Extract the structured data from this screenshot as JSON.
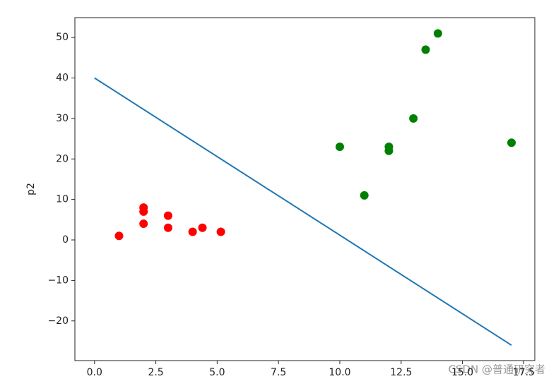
{
  "chart_data": {
    "type": "scatter",
    "ylabel": "p2",
    "xlim": [
      -0.8,
      17.95
    ],
    "ylim": [
      -29.8,
      54.9
    ],
    "xticks": [
      {
        "value": 0,
        "label": "0.0"
      },
      2.5,
      {
        "value": 5,
        "label": "5.0"
      },
      7.5,
      {
        "value": 10,
        "label": "10.0"
      },
      12.5,
      {
        "value": 15,
        "label": "15.0"
      },
      17.5
    ],
    "yticks": [
      {
        "value": -20,
        "label": "−20"
      },
      {
        "value": -10,
        "label": "−10"
      },
      0,
      10,
      20,
      30,
      40,
      50
    ],
    "series": [
      {
        "type": "scatter",
        "color": "#ff0000",
        "x": [
          1,
          2,
          2,
          2,
          3,
          3,
          4,
          4.4,
          5.15
        ],
        "values": [
          1,
          8,
          7,
          4,
          6,
          3,
          2,
          3,
          2
        ]
      },
      {
        "type": "scatter",
        "color": "#008000",
        "x": [
          10,
          11,
          12,
          12,
          13,
          13.5,
          14,
          17
        ],
        "values": [
          23,
          11,
          23,
          22,
          30,
          47,
          51,
          24
        ]
      },
      {
        "type": "line",
        "color": "#1f77b4",
        "x": [
          0,
          17
        ],
        "values": [
          40,
          -26
        ]
      }
    ],
    "watermark": "CSDN @普通研究者"
  }
}
